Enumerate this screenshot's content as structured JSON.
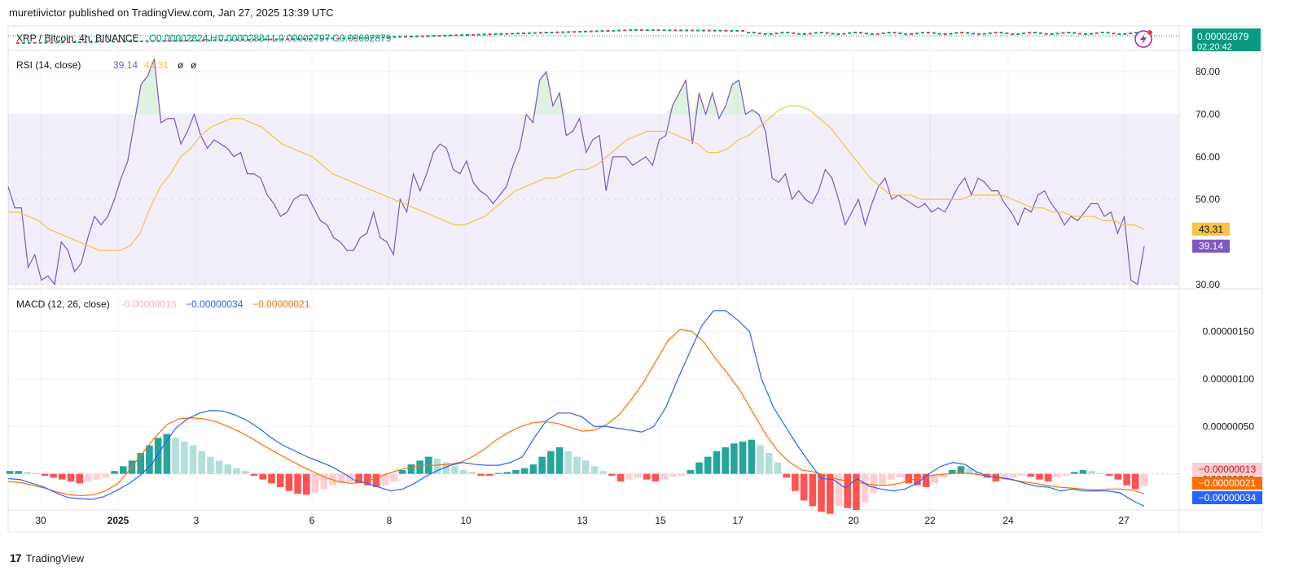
{
  "header": {
    "publish_text": "muretiivictor published on TradingView.com, Jan 27, 2025 13:39 UTC"
  },
  "footer": {
    "brand": "TradingView"
  },
  "price_pane": {
    "legend": {
      "symbol": "XRP / Bitcoin, 4h, BINANCE",
      "open_label": "O",
      "open": "0.00002824",
      "high_label": "H",
      "high": "0.00002884",
      "low_label": "L",
      "low": "0.00002797",
      "close_label": "C",
      "close": "0.00002879"
    },
    "last_price": "0.00002879",
    "countdown": "02:20:42",
    "colors": {
      "up": "#089981",
      "down": "#f23645",
      "badge": "#089981"
    }
  },
  "chart_data": [
    {
      "type": "line",
      "id": "rsi",
      "title": "RSI (14, close)",
      "legend_values": [
        "39.14",
        "43.31",
        "ø",
        "ø"
      ],
      "series": [
        {
          "name": "RSI",
          "color": "#7e57c2",
          "values": [
            53,
            48,
            48,
            34,
            37,
            31,
            32,
            30,
            40,
            38,
            33,
            35,
            41,
            46,
            44,
            46,
            50,
            55,
            59,
            68,
            77,
            79,
            83,
            68,
            69,
            69,
            63,
            66,
            70,
            65,
            62,
            64,
            63,
            62,
            60,
            61,
            56,
            56,
            55,
            51,
            49,
            46,
            47,
            50,
            51,
            51,
            48,
            45,
            44,
            41,
            40,
            38,
            38,
            41,
            42,
            47,
            41,
            40,
            37,
            50,
            47,
            56,
            52,
            56,
            61,
            63,
            62,
            57,
            56,
            59,
            54,
            52,
            51,
            49,
            51,
            53,
            58,
            62,
            70,
            68,
            78,
            80,
            72,
            75,
            65,
            66,
            69,
            61,
            64,
            65,
            52,
            60,
            60,
            60,
            58,
            59,
            60,
            58,
            64,
            65,
            72,
            75,
            78,
            63,
            75,
            70,
            75,
            69,
            72,
            77,
            78,
            70,
            71,
            70,
            66,
            55,
            54,
            56,
            50,
            52,
            50,
            49,
            52,
            57,
            55,
            50,
            44,
            47,
            50,
            44,
            49,
            53,
            55,
            50,
            51,
            50,
            49,
            48,
            49,
            47,
            48,
            47,
            50,
            53,
            55,
            51,
            55,
            54,
            52,
            52,
            49,
            47,
            44,
            48,
            47,
            51,
            52,
            49,
            47,
            44,
            46,
            45,
            47,
            49,
            49,
            46,
            47,
            42,
            46,
            31,
            30,
            39
          ]
        },
        {
          "name": "RSI-based MA",
          "color": "#f6c344",
          "values": [
            47,
            47,
            46,
            45,
            43,
            42,
            41,
            40,
            39,
            38,
            38,
            38,
            39,
            42,
            48,
            53,
            56,
            60,
            62,
            65,
            67,
            68,
            69,
            69,
            68,
            67,
            65,
            63,
            62,
            61,
            60,
            58,
            56,
            55,
            54,
            53,
            52,
            51,
            50,
            49,
            48,
            47,
            46,
            45,
            44,
            44,
            45,
            46,
            48,
            50,
            52,
            53,
            54,
            55,
            55,
            56,
            57,
            57,
            58,
            60,
            62,
            64,
            65,
            66,
            66,
            66,
            65,
            64,
            63,
            61,
            61,
            62,
            64,
            65,
            67,
            69,
            71,
            72,
            72,
            71,
            69,
            67,
            64,
            61,
            58,
            55,
            53,
            51,
            51,
            51,
            50,
            50,
            50,
            50,
            50,
            51,
            51,
            51,
            51,
            50,
            49,
            48,
            48,
            47,
            47,
            46,
            46,
            46,
            45,
            45,
            44,
            44,
            43
          ]
        }
      ],
      "y_ticks": [
        "80.00",
        "70.00",
        "60.00",
        "50.00",
        "30.00"
      ],
      "band": [
        30,
        70
      ],
      "ylim": [
        29,
        85
      ],
      "last_labels": [
        {
          "text": "43.31",
          "color": "#f6c344",
          "text_color": "#131722"
        },
        {
          "text": "39.14",
          "color": "#7e57c2",
          "text_color": "#ffffff"
        }
      ]
    },
    {
      "type": "bar",
      "id": "macd",
      "title": "MACD (12, 26, close)",
      "legend_values": [
        {
          "text": "-0.00000013",
          "color": "#f7b3b9"
        },
        {
          "text": "−0.00000034",
          "color": "#2962ff"
        },
        {
          "text": "−0.00000021",
          "color": "#ff6d00"
        }
      ],
      "series": [
        {
          "name": "MACD",
          "color": "#2962ff",
          "values": [
            -5,
            -6,
            -10,
            -14,
            -20,
            -25,
            -26,
            -27,
            -24,
            -18,
            -11,
            -2,
            10,
            30,
            48,
            58,
            64,
            67,
            66,
            62,
            56,
            48,
            38,
            30,
            24,
            18,
            13,
            8,
            1,
            -7,
            -10,
            -14,
            -18,
            -16,
            -10,
            -2,
            4,
            9,
            12,
            10,
            9,
            9,
            12,
            18,
            38,
            56,
            64,
            64,
            60,
            50,
            50,
            48,
            46,
            44,
            50,
            70,
            100,
            128,
            156,
            172,
            172,
            162,
            150,
            100,
            70,
            50,
            30,
            12,
            -5,
            -6,
            -15,
            -5,
            -13,
            -16,
            -18,
            -16,
            -10,
            0,
            8,
            12,
            10,
            2,
            -3,
            -4,
            -6,
            -10,
            -13,
            -14,
            -18,
            -16,
            -18,
            -18,
            -18,
            -20,
            -28,
            -34
          ]
        },
        {
          "name": "Signal",
          "color": "#ff6d00",
          "values": [
            -8,
            -9,
            -12,
            -15,
            -19,
            -22,
            -23,
            -22,
            -18,
            -10,
            5,
            22,
            38,
            52,
            58,
            59,
            58,
            55,
            50,
            44,
            37,
            29,
            22,
            15,
            8,
            2,
            -4,
            -8,
            -10,
            -9,
            -5,
            0,
            4,
            7,
            9,
            9,
            10,
            12,
            18,
            26,
            36,
            44,
            50,
            54,
            55,
            53,
            49,
            45,
            46,
            52,
            62,
            78,
            96,
            118,
            140,
            152,
            150,
            138,
            120,
            104,
            86,
            64,
            42,
            24,
            12,
            4,
            2,
            -2,
            -6,
            -8,
            -10,
            -12,
            -12,
            -10,
            -6,
            -3,
            -1,
            0,
            1,
            0,
            -2,
            -4,
            -6,
            -8,
            -10,
            -12,
            -14,
            -15,
            -16,
            -17,
            -16,
            -16,
            -17,
            -21
          ]
        },
        {
          "name": "Histogram",
          "color_pos": "#26a69a",
          "color_pos_fade": "#b2dfdb",
          "color_neg": "#ff5252",
          "color_neg_fade": "#ffcdd2",
          "values": [
            3,
            3,
            2,
            1,
            -2,
            -4,
            -6,
            -8,
            -10,
            -8,
            -6,
            -4,
            3,
            8,
            14,
            22,
            30,
            38,
            42,
            38,
            34,
            30,
            24,
            18,
            14,
            10,
            6,
            3,
            -2,
            -6,
            -10,
            -14,
            -18,
            -21,
            -22,
            -20,
            -16,
            -12,
            -10,
            -9,
            -10,
            -12,
            -14,
            -12,
            -8,
            4,
            10,
            14,
            18,
            16,
            12,
            8,
            4,
            2,
            -2,
            -2,
            1,
            2,
            4,
            6,
            10,
            18,
            24,
            28,
            24,
            18,
            14,
            8,
            3,
            -2,
            -8,
            -6,
            -4,
            -6,
            -8,
            -6,
            -3,
            -2,
            4,
            12,
            18,
            24,
            28,
            32,
            34,
            36,
            30,
            22,
            12,
            -4,
            -18,
            -28,
            -34,
            -40,
            -42,
            -34,
            -36,
            -38,
            -30,
            -20,
            -12,
            -6,
            -4,
            -10,
            -12,
            -14,
            -10,
            -4,
            4,
            8,
            6,
            2,
            -4,
            -8,
            -6,
            -4,
            -2,
            -3,
            -6,
            -8,
            -4,
            -2,
            2,
            4,
            3,
            1,
            -2,
            -6,
            -12,
            -16,
            -13
          ]
        }
      ],
      "y_ticks": [
        "0.00000150",
        "0.00000100",
        "0.00000050",
        "0.00000000"
      ],
      "y_tick_values": [
        150,
        100,
        50,
        0
      ],
      "ylim": [
        -38,
        195
      ],
      "last_labels": [
        {
          "text": "−0.00000013",
          "color": "#ffcdd2",
          "text_color": "#b71c1c"
        },
        {
          "text": "−0.00000021",
          "color": "#ff6d00",
          "text_color": "#ffffff"
        },
        {
          "text": "−0.00000034",
          "color": "#2962ff",
          "text_color": "#ffffff"
        }
      ]
    }
  ],
  "x_axis": {
    "ticks": [
      {
        "label": "30",
        "bold": false
      },
      {
        "label": "2025",
        "bold": true
      },
      {
        "label": "3",
        "bold": false
      },
      {
        "label": "6",
        "bold": false
      },
      {
        "label": "8",
        "bold": false
      },
      {
        "label": "10",
        "bold": false
      },
      {
        "label": "13",
        "bold": false
      },
      {
        "label": "15",
        "bold": false
      },
      {
        "label": "17",
        "bold": false
      },
      {
        "label": "20",
        "bold": false
      },
      {
        "label": "22",
        "bold": false
      },
      {
        "label": "24",
        "bold": false
      },
      {
        "label": "27",
        "bold": false
      }
    ]
  }
}
